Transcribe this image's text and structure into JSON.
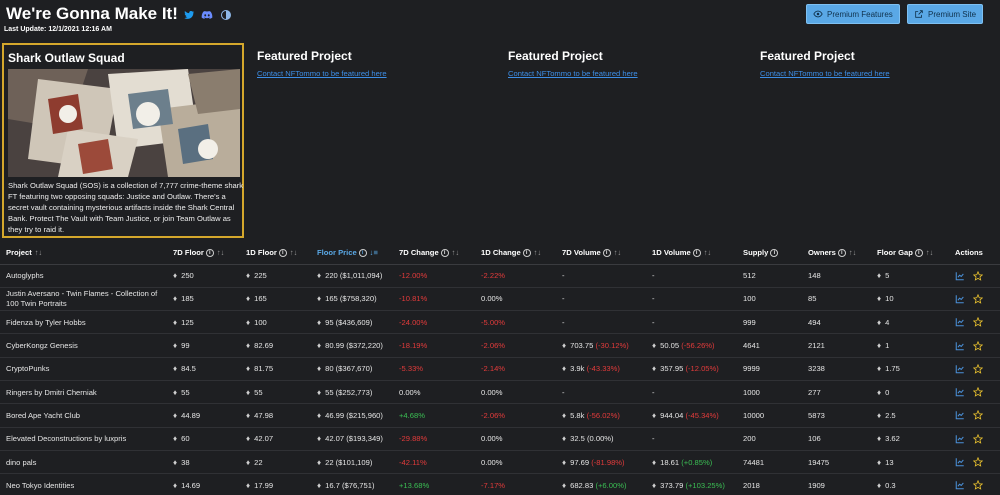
{
  "header": {
    "title": "We're Gonna Make It!",
    "last_update": "Last Update: 12/1/2021 12:16 AM",
    "social_icons": [
      "twitter-icon",
      "discord-icon",
      "theme-icon"
    ],
    "buttons": [
      {
        "label": "Premium Features",
        "icon": "eye-icon"
      },
      {
        "label": "Premium Site",
        "icon": "external-link-icon"
      }
    ]
  },
  "spotlight": {
    "title": "Shark Outlaw Squad",
    "description": "Shark Outlaw Squad (SOS) is a collection of 7,777 crime-theme shark FT featuring two opposing squads: Justice and Outlaw. There's a secret vault containing mysterious artifacts inside the Shark Central Bank. Protect The Vault with Team Justice, or join Team Outlaw as they try to raid it."
  },
  "featured": [
    {
      "title": "Featured Project",
      "link": "Contact NFTommo to be featured here"
    },
    {
      "title": "Featured Project",
      "link": "Contact NFTommo to be featured here"
    },
    {
      "title": "Featured Project",
      "link": "Contact NFTommo to be featured here"
    }
  ],
  "table": {
    "columns": [
      "Project",
      "7D Floor",
      "1D Floor",
      "Floor Price",
      "7D Change",
      "1D Change",
      "7D Volume",
      "1D Volume",
      "Supply",
      "Owners",
      "Floor Gap",
      "Actions"
    ],
    "rows": [
      {
        "project": "Autoglyphs",
        "floor7d": "250",
        "floor1d": "225",
        "floor_price": "220 ($1,011,094)",
        "change7d": "-12.00%",
        "change7d_dir": "neg",
        "change1d": "-2.22%",
        "change1d_dir": "neg",
        "vol7d": "-",
        "vol7d_pct": "",
        "vol7d_dir": "",
        "vol1d": "-",
        "vol1d_pct": "",
        "vol1d_dir": "",
        "supply": "512",
        "owners": "148",
        "gap": "5"
      },
      {
        "project": "Justin Aversano - Twin Flames - Collection of 100 Twin Portraits",
        "floor7d": "185",
        "floor1d": "165",
        "floor_price": "165 ($758,320)",
        "change7d": "-10.81%",
        "change7d_dir": "neg",
        "change1d": "0.00%",
        "change1d_dir": "",
        "vol7d": "-",
        "vol7d_pct": "",
        "vol7d_dir": "",
        "vol1d": "-",
        "vol1d_pct": "",
        "vol1d_dir": "",
        "supply": "100",
        "owners": "85",
        "gap": "10"
      },
      {
        "project": "Fidenza by Tyler Hobbs",
        "floor7d": "125",
        "floor1d": "100",
        "floor_price": "95 ($436,609)",
        "change7d": "-24.00%",
        "change7d_dir": "neg",
        "change1d": "-5.00%",
        "change1d_dir": "neg",
        "vol7d": "-",
        "vol7d_pct": "",
        "vol7d_dir": "",
        "vol1d": "-",
        "vol1d_pct": "",
        "vol1d_dir": "",
        "supply": "999",
        "owners": "494",
        "gap": "4"
      },
      {
        "project": "CyberKongz Genesis",
        "floor7d": "99",
        "floor1d": "82.69",
        "floor_price": "80.99 ($372,220)",
        "change7d": "-18.19%",
        "change7d_dir": "neg",
        "change1d": "-2.06%",
        "change1d_dir": "neg",
        "vol7d": "703.75",
        "vol7d_pct": "(-30.12%)",
        "vol7d_dir": "neg",
        "vol1d": "50.05",
        "vol1d_pct": "(-56.26%)",
        "vol1d_dir": "neg",
        "supply": "4641",
        "owners": "2121",
        "gap": "1"
      },
      {
        "project": "CryptoPunks",
        "floor7d": "84.5",
        "floor1d": "81.75",
        "floor_price": "80 ($367,670)",
        "change7d": "-5.33%",
        "change7d_dir": "neg",
        "change1d": "-2.14%",
        "change1d_dir": "neg",
        "vol7d": "3.9k",
        "vol7d_pct": "(-43.33%)",
        "vol7d_dir": "neg",
        "vol1d": "357.95",
        "vol1d_pct": "(-12.05%)",
        "vol1d_dir": "neg",
        "supply": "9999",
        "owners": "3238",
        "gap": "1.75"
      },
      {
        "project": "Ringers by Dmitri Cherniak",
        "floor7d": "55",
        "floor1d": "55",
        "floor_price": "55 ($252,773)",
        "change7d": "0.00%",
        "change7d_dir": "",
        "change1d": "0.00%",
        "change1d_dir": "",
        "vol7d": "-",
        "vol7d_pct": "",
        "vol7d_dir": "",
        "vol1d": "-",
        "vol1d_pct": "",
        "vol1d_dir": "",
        "supply": "1000",
        "owners": "277",
        "gap": "0"
      },
      {
        "project": "Bored Ape Yacht Club",
        "floor7d": "44.89",
        "floor1d": "47.98",
        "floor_price": "46.99 ($215,960)",
        "change7d": "+4.68%",
        "change7d_dir": "pos",
        "change1d": "-2.06%",
        "change1d_dir": "neg",
        "vol7d": "5.8k",
        "vol7d_pct": "(-56.02%)",
        "vol7d_dir": "neg",
        "vol1d": "944.04",
        "vol1d_pct": "(-45.34%)",
        "vol1d_dir": "neg",
        "supply": "10000",
        "owners": "5873",
        "gap": "2.5"
      },
      {
        "project": "Elevated Deconstructions by luxpris",
        "floor7d": "60",
        "floor1d": "42.07",
        "floor_price": "42.07 ($193,349)",
        "change7d": "-29.88%",
        "change7d_dir": "neg",
        "change1d": "0.00%",
        "change1d_dir": "",
        "vol7d": "32.5 (0.00%)",
        "vol7d_pct": "",
        "vol7d_dir": "",
        "vol1d": "-",
        "vol1d_pct": "",
        "vol1d_dir": "",
        "supply": "200",
        "owners": "106",
        "gap": "3.62"
      },
      {
        "project": "dino pals",
        "floor7d": "38",
        "floor1d": "22",
        "floor_price": "22 ($101,109)",
        "change7d": "-42.11%",
        "change7d_dir": "neg",
        "change1d": "0.00%",
        "change1d_dir": "",
        "vol7d": "97.69",
        "vol7d_pct": "(-81.98%)",
        "vol7d_dir": "neg",
        "vol1d": "18.61",
        "vol1d_pct": "(+0.85%)",
        "vol1d_dir": "pos",
        "supply": "74481",
        "owners": "19475",
        "gap": "13"
      },
      {
        "project": "Neo Tokyo Identities",
        "floor7d": "14.69",
        "floor1d": "17.99",
        "floor_price": "16.7 ($76,751)",
        "change7d": "+13.68%",
        "change7d_dir": "pos",
        "change1d": "-7.17%",
        "change1d_dir": "neg",
        "vol7d": "682.83",
        "vol7d_pct": "(+6.00%)",
        "vol7d_dir": "pos",
        "vol1d": "373.79",
        "vol1d_pct": "(+103.25%)",
        "vol1d_dir": "pos",
        "supply": "2018",
        "owners": "1909",
        "gap": "0.3"
      }
    ]
  },
  "colors": {
    "accent": "#5aa8e6",
    "spotlight_border": "#d4a72c",
    "negative": "#e33b3b",
    "positive": "#3bbf54",
    "link": "#3d8ee6",
    "star": "#e8c02e"
  }
}
